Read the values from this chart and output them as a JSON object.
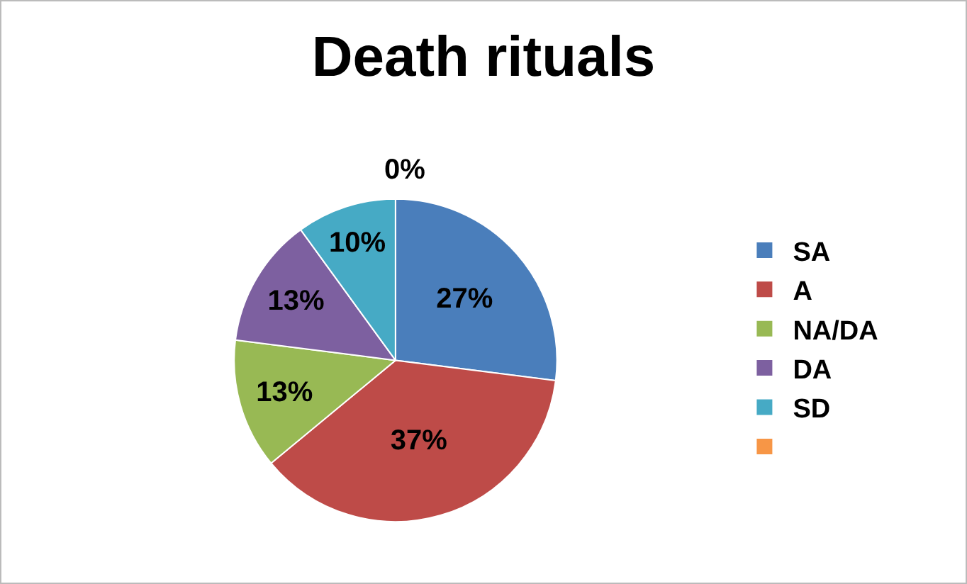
{
  "chart_data": {
    "type": "pie",
    "title": "Death rituals",
    "categories": [
      "SA",
      "A",
      "NA/DA",
      "DA",
      "SD",
      null
    ],
    "values": [
      27,
      37,
      13,
      13,
      10,
      0
    ],
    "colors": [
      "#4a7ebb",
      "#be4b48",
      "#98b954",
      "#7d60a0",
      "#46aac5",
      "#f79646"
    ],
    "value_labels": [
      "27%",
      "37%",
      "13%",
      "13%",
      "10%",
      "0%"
    ],
    "legend": "right"
  }
}
